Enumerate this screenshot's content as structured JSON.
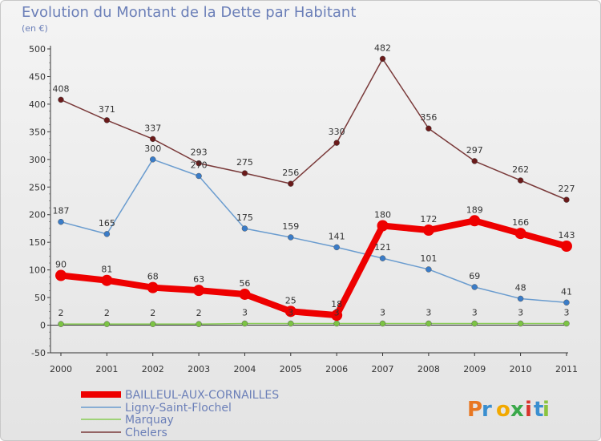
{
  "header": {
    "title": "Evolution du Montant de la Dette par Habitant",
    "unit": "(en €)"
  },
  "logo": {
    "text": "Proxiti"
  },
  "chart_data": {
    "type": "line",
    "title": "Evolution du Montant de la Dette par Habitant",
    "ylabel": "(en €)",
    "xlabel": "",
    "ylim": [
      -50,
      500
    ],
    "yticks": [
      -50,
      0,
      50,
      100,
      150,
      200,
      250,
      300,
      350,
      400,
      450,
      500
    ],
    "categories": [
      "2000",
      "2001",
      "2002",
      "2003",
      "2004",
      "2005",
      "2006",
      "2007",
      "2008",
      "2009",
      "2010",
      "2011"
    ],
    "grid": false,
    "legend": "bottom-left",
    "series": [
      {
        "name": "BAILLEUL-AUX-CORNAILLES",
        "values": [
          90,
          81,
          68,
          63,
          56,
          25,
          18,
          180,
          172,
          189,
          166,
          143
        ],
        "color": "#ee0000",
        "marker": "#ee0000",
        "width": 8,
        "r": 7
      },
      {
        "name": "Ligny-Saint-Flochel",
        "values": [
          187,
          165,
          300,
          270,
          175,
          159,
          141,
          121,
          101,
          69,
          48,
          41
        ],
        "color": "#6a9ccf",
        "marker": "#3a7cc8",
        "width": 1.5,
        "r": 3.5
      },
      {
        "name": "Marquay",
        "values": [
          2,
          2,
          2,
          2,
          3,
          3,
          3,
          3,
          3,
          3,
          3,
          3
        ],
        "color": "#88cc55",
        "marker": "#7cc444",
        "width": 1.5,
        "r": 3.5
      },
      {
        "name": "Chelers",
        "values": [
          408,
          371,
          337,
          293,
          275,
          256,
          330,
          482,
          356,
          297,
          262,
          227
        ],
        "color": "#7a3a3a",
        "marker": "#6a1a1a",
        "width": 1.5,
        "r": 3.5
      }
    ]
  }
}
